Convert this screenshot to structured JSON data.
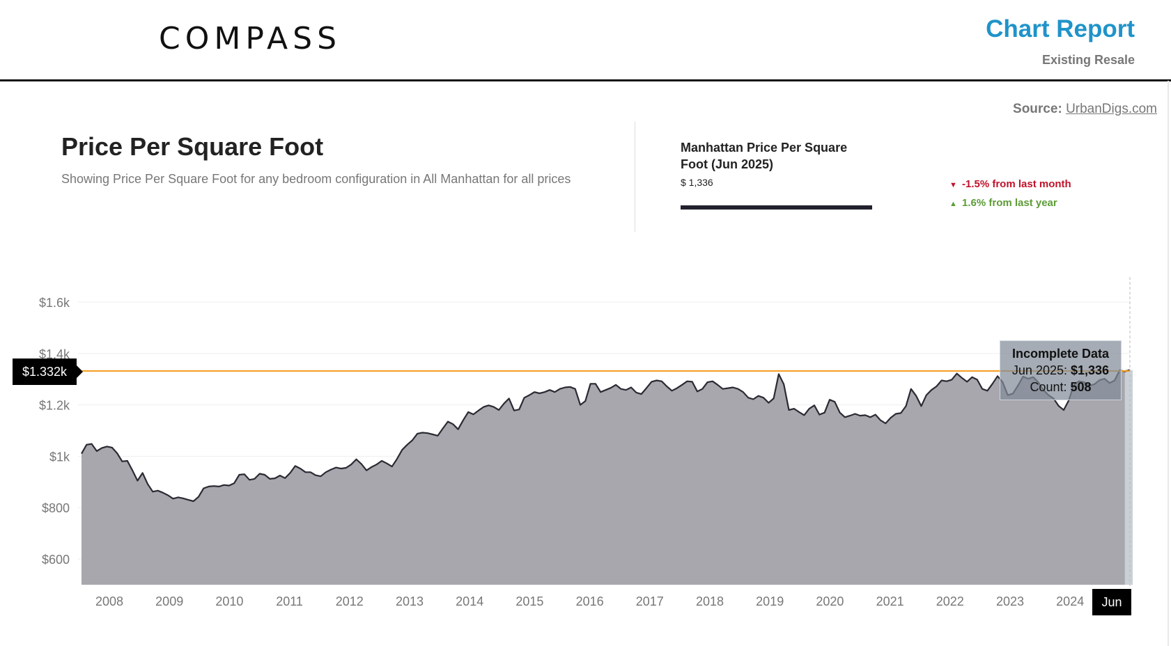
{
  "header": {
    "logo": "COMPASS",
    "report_title": "Chart Report",
    "report_subtitle": "Existing Resale"
  },
  "source": {
    "label": "Source:",
    "link": "UrbanDigs.com"
  },
  "page": {
    "title": "Price Per Square Foot",
    "description": "Showing Price Per Square Foot for any bedroom configuration in All Manhattan for all prices"
  },
  "stat": {
    "label": "Manhattan Price Per Square Foot  (Jun 2025)",
    "value": "$ 1,336",
    "change_month": "-1.5% from last month",
    "change_year": "1.6% from last year"
  },
  "tooltip": {
    "title": "Incomplete Data",
    "date_label": "Jun 2025:",
    "date_value": "$1,336",
    "count_label": "Count:",
    "count_value": "508"
  },
  "crosshair": {
    "y_label": "$1.332k",
    "x_label": "Jun"
  },
  "colors": {
    "area": "#a7a7ad",
    "line": "#2a2a33",
    "accent": "#1f93c9",
    "down": "#c0122a",
    "up": "#5c9c36",
    "crosshair": "#f59a1b"
  },
  "chart_data": {
    "type": "area",
    "title": "Price Per Square Foot",
    "ylim": [
      500,
      1700
    ],
    "y_ticks": [
      600,
      800,
      1000,
      1200,
      1400,
      1600
    ],
    "y_tick_labels": [
      "$600",
      "$800",
      "$1k",
      "$1.2k",
      "$1.4k",
      "$1.6k"
    ],
    "x_tick_labels": [
      "2008",
      "2009",
      "2010",
      "2011",
      "2012",
      "2013",
      "2014",
      "2015",
      "2016",
      "2017",
      "2018",
      "2019",
      "2020",
      "2021",
      "2022",
      "2023",
      "2024"
    ],
    "x_start": "2007-07",
    "x_end": "2025-06",
    "horizontal_line": 1332,
    "incomplete_period": "Jun 2025",
    "grid": true,
    "values": [
      1010,
      1045,
      1048,
      1020,
      1032,
      1038,
      1034,
      1012,
      980,
      982,
      945,
      905,
      935,
      892,
      862,
      866,
      858,
      848,
      835,
      840,
      836,
      830,
      825,
      842,
      875,
      882,
      884,
      882,
      888,
      886,
      895,
      928,
      930,
      908,
      912,
      932,
      928,
      912,
      914,
      925,
      915,
      935,
      962,
      952,
      938,
      938,
      926,
      922,
      938,
      948,
      956,
      952,
      955,
      968,
      988,
      970,
      945,
      958,
      968,
      982,
      972,
      960,
      990,
      1025,
      1045,
      1062,
      1088,
      1092,
      1090,
      1085,
      1080,
      1108,
      1135,
      1125,
      1105,
      1140,
      1172,
      1163,
      1178,
      1192,
      1198,
      1192,
      1180,
      1205,
      1225,
      1178,
      1182,
      1228,
      1238,
      1250,
      1245,
      1250,
      1258,
      1250,
      1262,
      1268,
      1270,
      1262,
      1200,
      1215,
      1282,
      1282,
      1250,
      1258,
      1266,
      1278,
      1262,
      1258,
      1268,
      1248,
      1242,
      1265,
      1290,
      1295,
      1292,
      1272,
      1255,
      1265,
      1278,
      1292,
      1290,
      1252,
      1262,
      1288,
      1292,
      1278,
      1262,
      1265,
      1268,
      1262,
      1250,
      1228,
      1222,
      1235,
      1228,
      1208,
      1225,
      1320,
      1280,
      1180,
      1185,
      1172,
      1160,
      1185,
      1198,
      1162,
      1170,
      1220,
      1212,
      1170,
      1152,
      1158,
      1165,
      1158,
      1160,
      1152,
      1162,
      1140,
      1128,
      1150,
      1165,
      1168,
      1195,
      1262,
      1235,
      1195,
      1238,
      1258,
      1272,
      1295,
      1292,
      1298,
      1322,
      1305,
      1290,
      1308,
      1298,
      1262,
      1255,
      1282,
      1312,
      1288,
      1238,
      1244,
      1275,
      1310,
      1302,
      1308,
      1288,
      1258,
      1238,
      1225,
      1196,
      1180,
      1218,
      1278,
      1292,
      1288,
      1275,
      1280,
      1296,
      1302,
      1285,
      1295,
      1335,
      1330,
      1336
    ]
  }
}
